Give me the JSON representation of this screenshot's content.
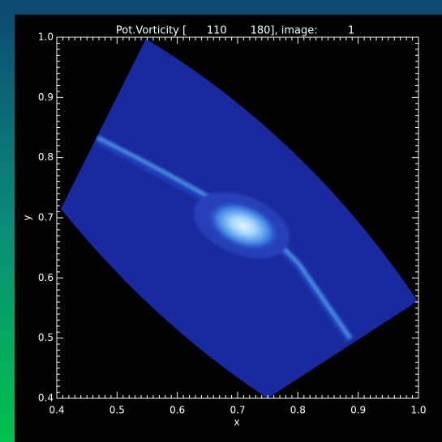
{
  "chart_data": {
    "type": "image",
    "title": "Pot.Vorticity [      110       180], image:         1",
    "xlabel": "x",
    "ylabel": "y",
    "xlim": [
      0.4,
      1.0
    ],
    "ylim": [
      0.4,
      1.0
    ],
    "xticks": [
      0.4,
      0.5,
      0.6,
      0.7,
      0.8,
      0.9,
      {
        "value": 1.0,
        "label": "1.0"
      }
    ],
    "yticks": [
      0.4,
      0.5,
      0.6,
      0.7,
      0.8,
      0.9,
      {
        "value": 1.0,
        "label": "1.0"
      }
    ]
  }
}
